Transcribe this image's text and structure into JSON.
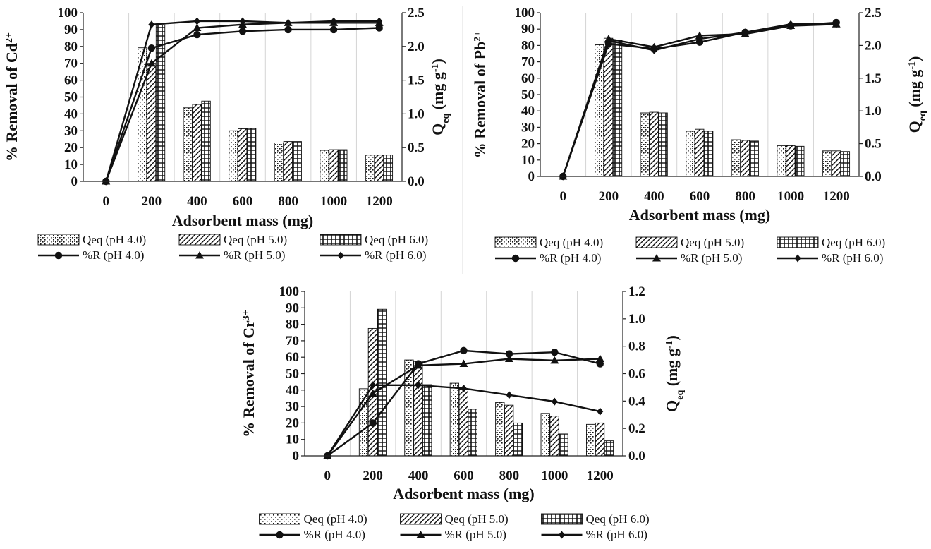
{
  "chart_data": [
    {
      "id": "cd",
      "type": "bar",
      "title": "",
      "xlabel": "Adsorbent mass (mg)",
      "ylabel_prefix": "% Removal of Cd",
      "ylabel_sup": "2+",
      "y2label_main": "Q",
      "y2label_sub": "eq",
      "y2label_unit": " (mg g",
      "y2label_unit_sup": "-1",
      "y2label_close": ")",
      "categories": [
        "0",
        "200",
        "400",
        "600",
        "800",
        "1000",
        "1200"
      ],
      "ylim": [
        0,
        100
      ],
      "y_ticks": [
        "0",
        "10",
        "20",
        "30",
        "40",
        "50",
        "60",
        "70",
        "80",
        "90",
        "100"
      ],
      "y2lim": [
        0,
        2.5
      ],
      "y2_ticks": [
        "0.0",
        "0.5",
        "1.0",
        "1.5",
        "2.0",
        "2.5"
      ],
      "bar_series": [
        {
          "name": "Qeq (pH 4.0)",
          "pattern": "p1",
          "values": [
            0,
            1.98,
            1.09,
            0.75,
            0.57,
            0.46,
            0.39
          ]
        },
        {
          "name": "Qeq (pH 5.0)",
          "pattern": "p2",
          "values": [
            0,
            1.75,
            1.14,
            0.78,
            0.59,
            0.47,
            0.39
          ]
        },
        {
          "name": "Qeq (pH 6.0)",
          "pattern": "p3",
          "values": [
            0,
            2.32,
            1.19,
            0.79,
            0.59,
            0.47,
            0.39
          ]
        }
      ],
      "line_series": [
        {
          "name": "%R (pH 4.0)",
          "marker": "circle",
          "values": [
            0,
            79,
            87,
            89,
            90,
            90,
            91
          ]
        },
        {
          "name": "%R (pH 5.0)",
          "marker": "triangle",
          "values": [
            0,
            70,
            91,
            93,
            94,
            94,
            94
          ]
        },
        {
          "name": "%R (pH 6.0)",
          "marker": "diamond",
          "values": [
            0,
            93,
            95,
            95,
            94,
            95,
            95
          ]
        }
      ],
      "legend_position": "bottom"
    },
    {
      "id": "pb",
      "type": "bar",
      "title": "",
      "xlabel": "Adsorbent mass (mg)",
      "ylabel_prefix": "% Removal of Pb",
      "ylabel_sup": "2+",
      "y2label_main": "Q",
      "y2label_sub": "eq",
      "y2label_unit": " (mg g",
      "y2label_unit_sup": "-1",
      "y2label_close": ")",
      "categories": [
        "0",
        "200",
        "400",
        "600",
        "800",
        "1000",
        "1200"
      ],
      "ylim": [
        0,
        100
      ],
      "y_ticks": [
        "0",
        "10",
        "20",
        "30",
        "40",
        "50",
        "60",
        "70",
        "80",
        "90",
        "100"
      ],
      "y2lim": [
        0,
        2.5
      ],
      "y2_ticks": [
        "0.0",
        "0.5",
        "1.0",
        "1.5",
        "2.0",
        "2.5"
      ],
      "bar_series": [
        {
          "name": "Qeq (pH 4.0)",
          "pattern": "p1",
          "values": [
            0,
            2.01,
            0.97,
            0.69,
            0.56,
            0.47,
            0.39
          ]
        },
        {
          "name": "Qeq (pH 5.0)",
          "pattern": "p2",
          "values": [
            0,
            2.11,
            0.98,
            0.72,
            0.55,
            0.47,
            0.39
          ]
        },
        {
          "name": "Qeq (pH 6.0)",
          "pattern": "p3",
          "values": [
            0,
            2.08,
            0.97,
            0.69,
            0.54,
            0.46,
            0.38
          ]
        }
      ],
      "line_series": [
        {
          "name": "%R (pH 4.0)",
          "marker": "circle",
          "values": [
            0,
            81,
            78,
            82,
            88,
            92,
            94
          ]
        },
        {
          "name": "%R (pH 5.0)",
          "marker": "triangle",
          "values": [
            0,
            84,
            79,
            86,
            87,
            92,
            93
          ]
        },
        {
          "name": "%R (pH 6.0)",
          "marker": "diamond",
          "values": [
            0,
            83,
            77,
            84,
            88,
            93,
            93
          ]
        }
      ],
      "legend_position": "bottom"
    },
    {
      "id": "cr",
      "type": "bar",
      "title": "",
      "xlabel": "Adsorbent mass (mg)",
      "ylabel_prefix": "% Removal of Cr",
      "ylabel_sup": "3+",
      "y2label_main": "Q",
      "y2label_sub": "eq",
      "y2label_unit": " (mg g",
      "y2label_unit_sup": "-1",
      "y2label_close": ")",
      "categories": [
        "0",
        "200",
        "400",
        "600",
        "800",
        "1000",
        "1200"
      ],
      "ylim": [
        0,
        100
      ],
      "y_ticks": [
        "0",
        "10",
        "20",
        "30",
        "40",
        "50",
        "60",
        "70",
        "80",
        "90",
        "100"
      ],
      "y2lim": [
        0,
        1.2
      ],
      "y2_ticks": [
        "0.0",
        "0.2",
        "0.4",
        "0.6",
        "0.8",
        "1.0",
        "1.2"
      ],
      "bar_series": [
        {
          "name": "Qeq (pH 4.0)",
          "pattern": "p1",
          "values": [
            0,
            0.49,
            0.7,
            0.53,
            0.39,
            0.31,
            0.23
          ]
        },
        {
          "name": "Qeq (pH 5.0)",
          "pattern": "p2",
          "values": [
            0,
            0.93,
            0.69,
            0.49,
            0.37,
            0.29,
            0.24
          ]
        },
        {
          "name": "Qeq (pH 6.0)",
          "pattern": "p3",
          "values": [
            0,
            1.07,
            0.52,
            0.34,
            0.24,
            0.16,
            0.11
          ]
        }
      ],
      "line_series": [
        {
          "name": "%R (pH 4.0)",
          "marker": "circle",
          "values": [
            0,
            20,
            56,
            64,
            62,
            63,
            56
          ]
        },
        {
          "name": "%R (pH 5.0)",
          "marker": "triangle",
          "values": [
            0,
            38,
            55,
            56,
            59,
            58,
            59
          ]
        },
        {
          "name": "%R (pH 6.0)",
          "marker": "diamond",
          "values": [
            0,
            43,
            43,
            41,
            37,
            33,
            27
          ]
        }
      ],
      "legend_position": "bottom"
    }
  ]
}
